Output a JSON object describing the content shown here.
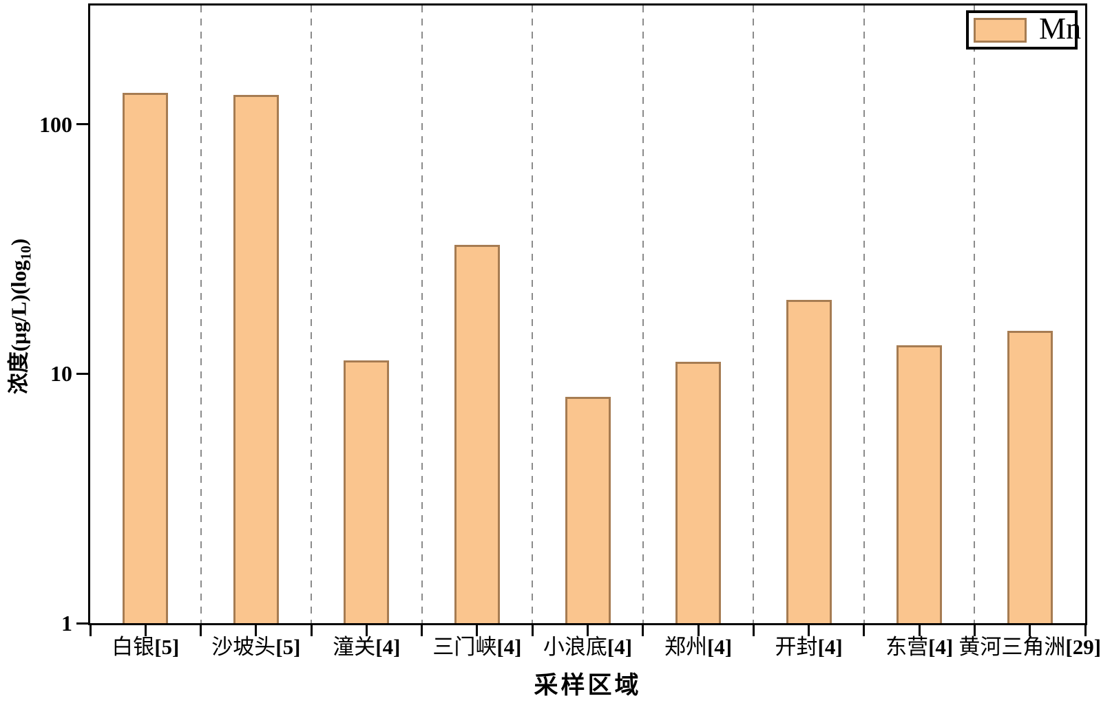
{
  "chart_data": {
    "type": "bar",
    "title": "",
    "xlabel": "采样区域",
    "ylabel": "浓度(μg/L)(log10)",
    "ylabel_prefix": "浓度(μg/L)(log",
    "ylabel_sub": "10",
    "ylabel_suffix": ")",
    "scale": "log10",
    "ylim": [
      1,
      300
    ],
    "y_ticks": [
      100,
      10,
      1
    ],
    "grid": "vertical dashed lines at category boundaries",
    "legend": {
      "label": "Mn",
      "position": "top-right"
    },
    "series_name": "Mn",
    "categories": [
      {
        "city": "白银",
        "ref": "[5]"
      },
      {
        "city": "沙坡头",
        "ref": "[5]"
      },
      {
        "city": "潼关",
        "ref": "[4]"
      },
      {
        "city": "三门峡",
        "ref": "[4]"
      },
      {
        "city": "小浪底",
        "ref": "[4]"
      },
      {
        "city": "郑州",
        "ref": "[4]"
      },
      {
        "city": "开封",
        "ref": "[4]"
      },
      {
        "city": "东营",
        "ref": "[4]"
      },
      {
        "city": "黄河三角洲",
        "ref": "[29]"
      }
    ],
    "values": [
      134,
      131,
      11.3,
      32.8,
      8.1,
      11.2,
      19.8,
      13.0,
      14.9
    ],
    "colors": {
      "bar_fill": "#FAC58E",
      "bar_border": "#A67C52",
      "gridline": "#8A8A8A",
      "axis": "#000000",
      "background": "#FFFFFF"
    }
  }
}
